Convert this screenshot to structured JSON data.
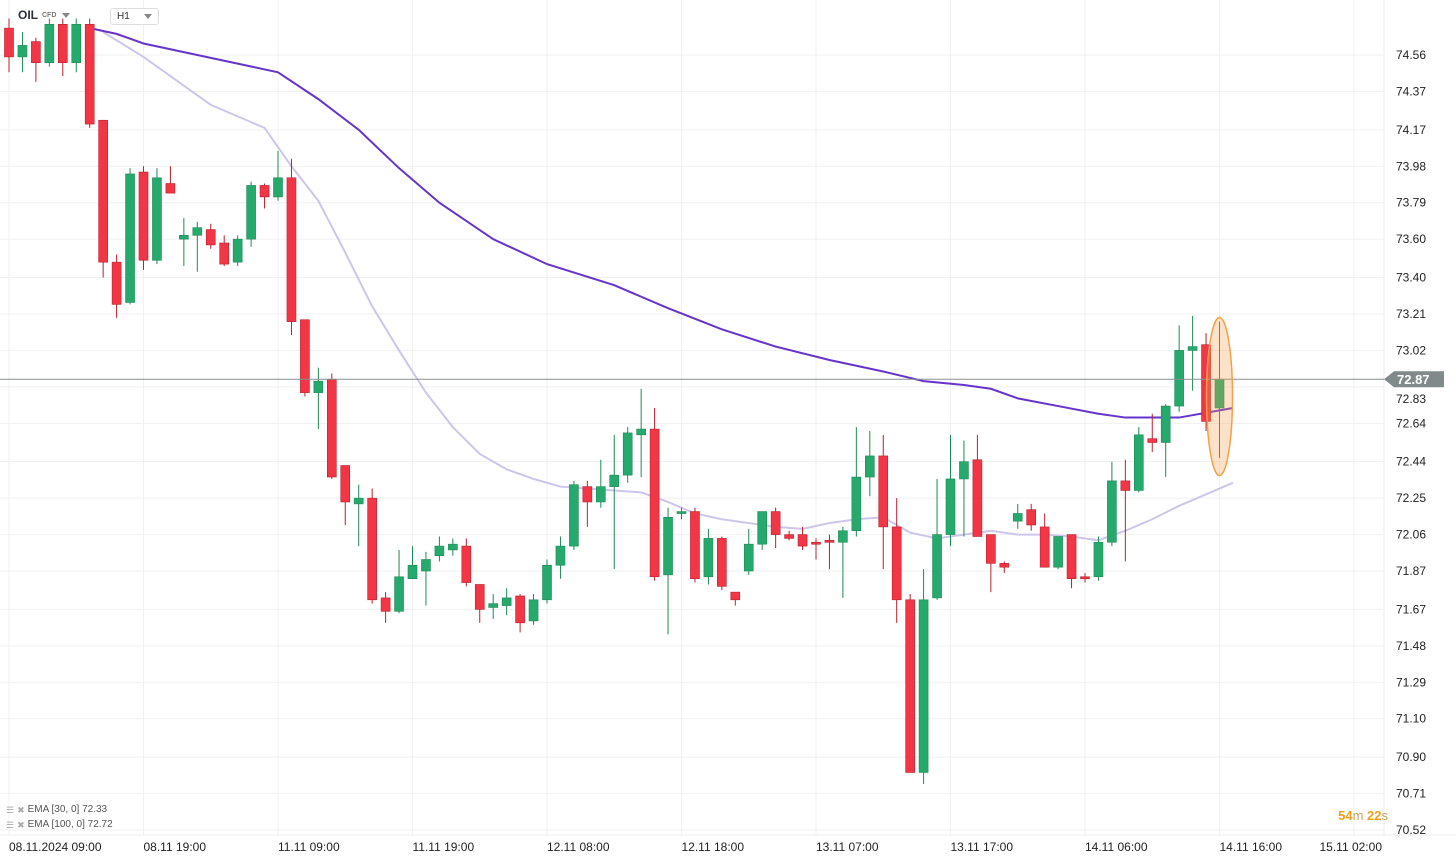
{
  "header": {
    "symbol": "OIL",
    "symbol_type": "CFD",
    "timeframe": "H1"
  },
  "indicators": [
    {
      "label": "EMA [30, 0] 72.33",
      "color": "#c9c3e8"
    },
    {
      "label": "EMA [100, 0] 72.72",
      "color": "#6a3fc4"
    }
  ],
  "countdown": {
    "minutes": "54",
    "m": "m",
    "seconds": "22",
    "s": "s"
  },
  "colors": {
    "up": "#26a96c",
    "down": "#f23645",
    "ema30": "#cdc6ea",
    "ema100": "#6633cc",
    "price_tag": "#808a8a",
    "highlight": "#f5a04a"
  },
  "chart_data": {
    "type": "candlestick",
    "current_price": 72.87,
    "ylim": [
      70.52,
      74.56
    ],
    "y_ticks": [
      "74.56",
      "74.37",
      "74.17",
      "73.98",
      "73.79",
      "73.60",
      "73.40",
      "73.21",
      "73.02",
      "72.83",
      "72.64",
      "72.44",
      "72.25",
      "72.06",
      "71.87",
      "71.67",
      "71.48",
      "71.29",
      "71.10",
      "70.90",
      "70.71",
      "70.52"
    ],
    "x_labels": [
      {
        "i": 0,
        "t": "08.11.2024  09:00"
      },
      {
        "i": 10,
        "t": "08.11  19:00"
      },
      {
        "i": 20,
        "t": "11.11  09:00"
      },
      {
        "i": 30,
        "t": "11.11  19:00"
      },
      {
        "i": 40,
        "t": "12.11  08:00"
      },
      {
        "i": 50,
        "t": "12.11  18:00"
      },
      {
        "i": 60,
        "t": "13.11  07:00"
      },
      {
        "i": 70,
        "t": "13.11  17:00"
      },
      {
        "i": 80,
        "t": "14.11  06:00"
      },
      {
        "i": 90,
        "t": "14.11  16:00"
      },
      {
        "i": 100,
        "t": "15.11  02:00"
      }
    ],
    "candles": [
      [
        74.7,
        74.55,
        74.75,
        74.47
      ],
      [
        74.55,
        74.61,
        74.68,
        74.47
      ],
      [
        74.63,
        74.52,
        74.65,
        74.42
      ],
      [
        74.52,
        74.72,
        74.75,
        74.5
      ],
      [
        74.72,
        74.52,
        74.75,
        74.45
      ],
      [
        74.52,
        74.72,
        74.75,
        74.47
      ],
      [
        74.72,
        74.2,
        74.75,
        74.18
      ],
      [
        74.22,
        73.48,
        74.22,
        73.4
      ],
      [
        73.48,
        73.26,
        73.52,
        73.19
      ],
      [
        73.27,
        73.94,
        73.97,
        73.26
      ],
      [
        73.95,
        73.49,
        73.98,
        73.44
      ],
      [
        73.49,
        73.92,
        73.97,
        73.47
      ],
      [
        73.89,
        73.84,
        73.98,
        73.84
      ],
      [
        73.6,
        73.62,
        73.71,
        73.46
      ],
      [
        73.62,
        73.66,
        73.69,
        73.43
      ],
      [
        73.65,
        73.57,
        73.68,
        73.55
      ],
      [
        73.58,
        73.47,
        73.62,
        73.46
      ],
      [
        73.48,
        73.6,
        73.62,
        73.46
      ],
      [
        73.6,
        73.88,
        73.9,
        73.56
      ],
      [
        73.88,
        73.82,
        73.89,
        73.76
      ],
      [
        73.82,
        73.92,
        74.06,
        73.8
      ],
      [
        73.92,
        73.17,
        74.02,
        73.1
      ],
      [
        73.18,
        72.8,
        73.18,
        72.78
      ],
      [
        72.8,
        72.86,
        72.93,
        72.61
      ],
      [
        72.87,
        72.36,
        72.9,
        72.35
      ],
      [
        72.42,
        72.23,
        72.42,
        72.11
      ],
      [
        72.22,
        72.25,
        72.32,
        72.0
      ],
      [
        72.25,
        71.72,
        72.3,
        71.7
      ],
      [
        71.73,
        71.66,
        71.76,
        71.6
      ],
      [
        71.66,
        71.84,
        71.98,
        71.65
      ],
      [
        71.83,
        71.9,
        72.0,
        71.83
      ],
      [
        71.87,
        71.93,
        71.97,
        71.69
      ],
      [
        71.95,
        72.0,
        72.05,
        71.92
      ],
      [
        71.98,
        72.01,
        72.04,
        71.95
      ],
      [
        72.0,
        71.81,
        72.04,
        71.79
      ],
      [
        71.8,
        71.67,
        71.8,
        71.6
      ],
      [
        71.68,
        71.7,
        71.75,
        71.62
      ],
      [
        71.69,
        71.73,
        71.78,
        71.64
      ],
      [
        71.74,
        71.6,
        71.75,
        71.55
      ],
      [
        71.61,
        71.72,
        71.75,
        71.59
      ],
      [
        71.72,
        71.9,
        71.93,
        71.7
      ],
      [
        71.9,
        72.0,
        72.05,
        71.83
      ],
      [
        72.0,
        72.32,
        72.34,
        71.98
      ],
      [
        72.31,
        72.23,
        72.34,
        72.1
      ],
      [
        72.23,
        72.31,
        72.45,
        72.2
      ],
      [
        72.31,
        72.37,
        72.58,
        71.88
      ],
      [
        72.37,
        72.59,
        72.62,
        72.33
      ],
      [
        72.58,
        72.61,
        72.82,
        72.36
      ],
      [
        72.61,
        71.84,
        72.72,
        71.82
      ],
      [
        71.85,
        72.15,
        72.2,
        71.54
      ],
      [
        72.17,
        72.18,
        72.2,
        72.14
      ],
      [
        72.18,
        71.83,
        72.2,
        71.81
      ],
      [
        71.84,
        72.04,
        72.09,
        71.8
      ],
      [
        72.04,
        71.79,
        72.05,
        71.77
      ],
      [
        71.76,
        71.72,
        71.76,
        71.69
      ],
      [
        71.87,
        72.01,
        72.09,
        71.85
      ],
      [
        72.01,
        72.18,
        72.18,
        71.98
      ],
      [
        72.18,
        72.06,
        72.2,
        71.99
      ],
      [
        72.06,
        72.04,
        72.08,
        72.03
      ],
      [
        72.06,
        72.0,
        72.1,
        71.98
      ],
      [
        72.02,
        72.01,
        72.04,
        71.93
      ],
      [
        72.03,
        72.02,
        72.06,
        71.88
      ],
      [
        72.02,
        72.08,
        72.1,
        71.73
      ],
      [
        72.08,
        72.36,
        72.62,
        72.05
      ],
      [
        72.36,
        72.47,
        72.6,
        72.26
      ],
      [
        72.47,
        72.1,
        72.58,
        71.88
      ],
      [
        72.1,
        71.72,
        72.25,
        71.6
      ],
      [
        71.72,
        70.82,
        71.75,
        70.82
      ],
      [
        70.82,
        71.72,
        71.88,
        70.76
      ],
      [
        71.73,
        72.06,
        72.35,
        71.72
      ],
      [
        72.06,
        72.35,
        72.58,
        72.0
      ],
      [
        72.35,
        72.44,
        72.55,
        72.05
      ],
      [
        72.45,
        72.05,
        72.58,
        72.05
      ],
      [
        72.06,
        71.91,
        72.06,
        71.76
      ],
      [
        71.91,
        71.89,
        71.92,
        71.86
      ],
      [
        72.13,
        72.17,
        72.22,
        72.09
      ],
      [
        72.19,
        72.11,
        72.22,
        72.08
      ],
      [
        72.1,
        71.89,
        72.17,
        71.89
      ],
      [
        71.89,
        72.05,
        72.05,
        71.88
      ],
      [
        72.06,
        71.83,
        72.06,
        71.78
      ],
      [
        71.84,
        71.83,
        71.86,
        71.81
      ],
      [
        71.84,
        72.02,
        72.05,
        71.82
      ],
      [
        72.02,
        72.34,
        72.44,
        72.0
      ],
      [
        72.34,
        72.29,
        72.45,
        71.92
      ],
      [
        72.29,
        72.58,
        72.62,
        72.28
      ],
      [
        72.56,
        72.54,
        72.69,
        72.49
      ],
      [
        72.54,
        72.73,
        72.74,
        72.36
      ],
      [
        72.73,
        73.02,
        73.15,
        72.7
      ],
      [
        73.02,
        73.04,
        73.2,
        72.81
      ],
      [
        73.05,
        72.65,
        73.11,
        72.6
      ],
      [
        72.72,
        72.87,
        73.17,
        72.46
      ]
    ],
    "series": [
      {
        "name": "EMA 30",
        "points": [
          [
            7,
            74.68
          ],
          [
            10,
            74.55
          ],
          [
            12,
            74.45
          ],
          [
            15,
            74.3
          ],
          [
            17,
            74.24
          ],
          [
            19,
            74.18
          ],
          [
            21,
            73.98
          ],
          [
            23,
            73.8
          ],
          [
            25,
            73.53
          ],
          [
            27,
            73.25
          ],
          [
            29,
            73.02
          ],
          [
            31,
            72.8
          ],
          [
            33,
            72.62
          ],
          [
            35,
            72.48
          ],
          [
            37,
            72.4
          ],
          [
            39,
            72.35
          ],
          [
            41,
            72.31
          ],
          [
            43,
            72.3
          ],
          [
            45,
            72.29
          ],
          [
            47,
            72.28
          ],
          [
            49,
            72.23
          ],
          [
            51,
            72.17
          ],
          [
            53,
            72.14
          ],
          [
            55,
            72.12
          ],
          [
            57,
            72.1
          ],
          [
            59,
            72.09
          ],
          [
            61,
            72.12
          ],
          [
            63,
            72.14
          ],
          [
            65,
            72.15
          ],
          [
            67,
            72.07
          ],
          [
            69,
            72.04
          ],
          [
            71,
            72.06
          ],
          [
            73,
            72.08
          ],
          [
            75,
            72.06
          ],
          [
            77,
            72.06
          ],
          [
            79,
            72.05
          ],
          [
            81,
            72.03
          ],
          [
            83,
            72.08
          ],
          [
            85,
            72.14
          ],
          [
            87,
            72.21
          ],
          [
            89,
            72.27
          ],
          [
            91,
            72.33
          ]
        ]
      },
      {
        "name": "EMA 100",
        "points": [
          [
            6,
            74.7
          ],
          [
            8,
            74.67
          ],
          [
            10,
            74.62
          ],
          [
            14,
            74.56
          ],
          [
            18,
            74.5
          ],
          [
            20,
            74.47
          ],
          [
            23,
            74.33
          ],
          [
            26,
            74.17
          ],
          [
            29,
            73.97
          ],
          [
            32,
            73.79
          ],
          [
            36,
            73.6
          ],
          [
            40,
            73.47
          ],
          [
            45,
            73.36
          ],
          [
            49,
            73.24
          ],
          [
            53,
            73.13
          ],
          [
            57,
            73.04
          ],
          [
            61,
            72.97
          ],
          [
            65,
            72.91
          ],
          [
            68,
            72.86
          ],
          [
            71,
            72.84
          ],
          [
            73,
            72.82
          ],
          [
            75,
            72.77
          ],
          [
            78,
            72.73
          ],
          [
            81,
            72.69
          ],
          [
            83,
            72.67
          ],
          [
            87,
            72.67
          ],
          [
            91,
            72.72
          ]
        ]
      }
    ]
  }
}
